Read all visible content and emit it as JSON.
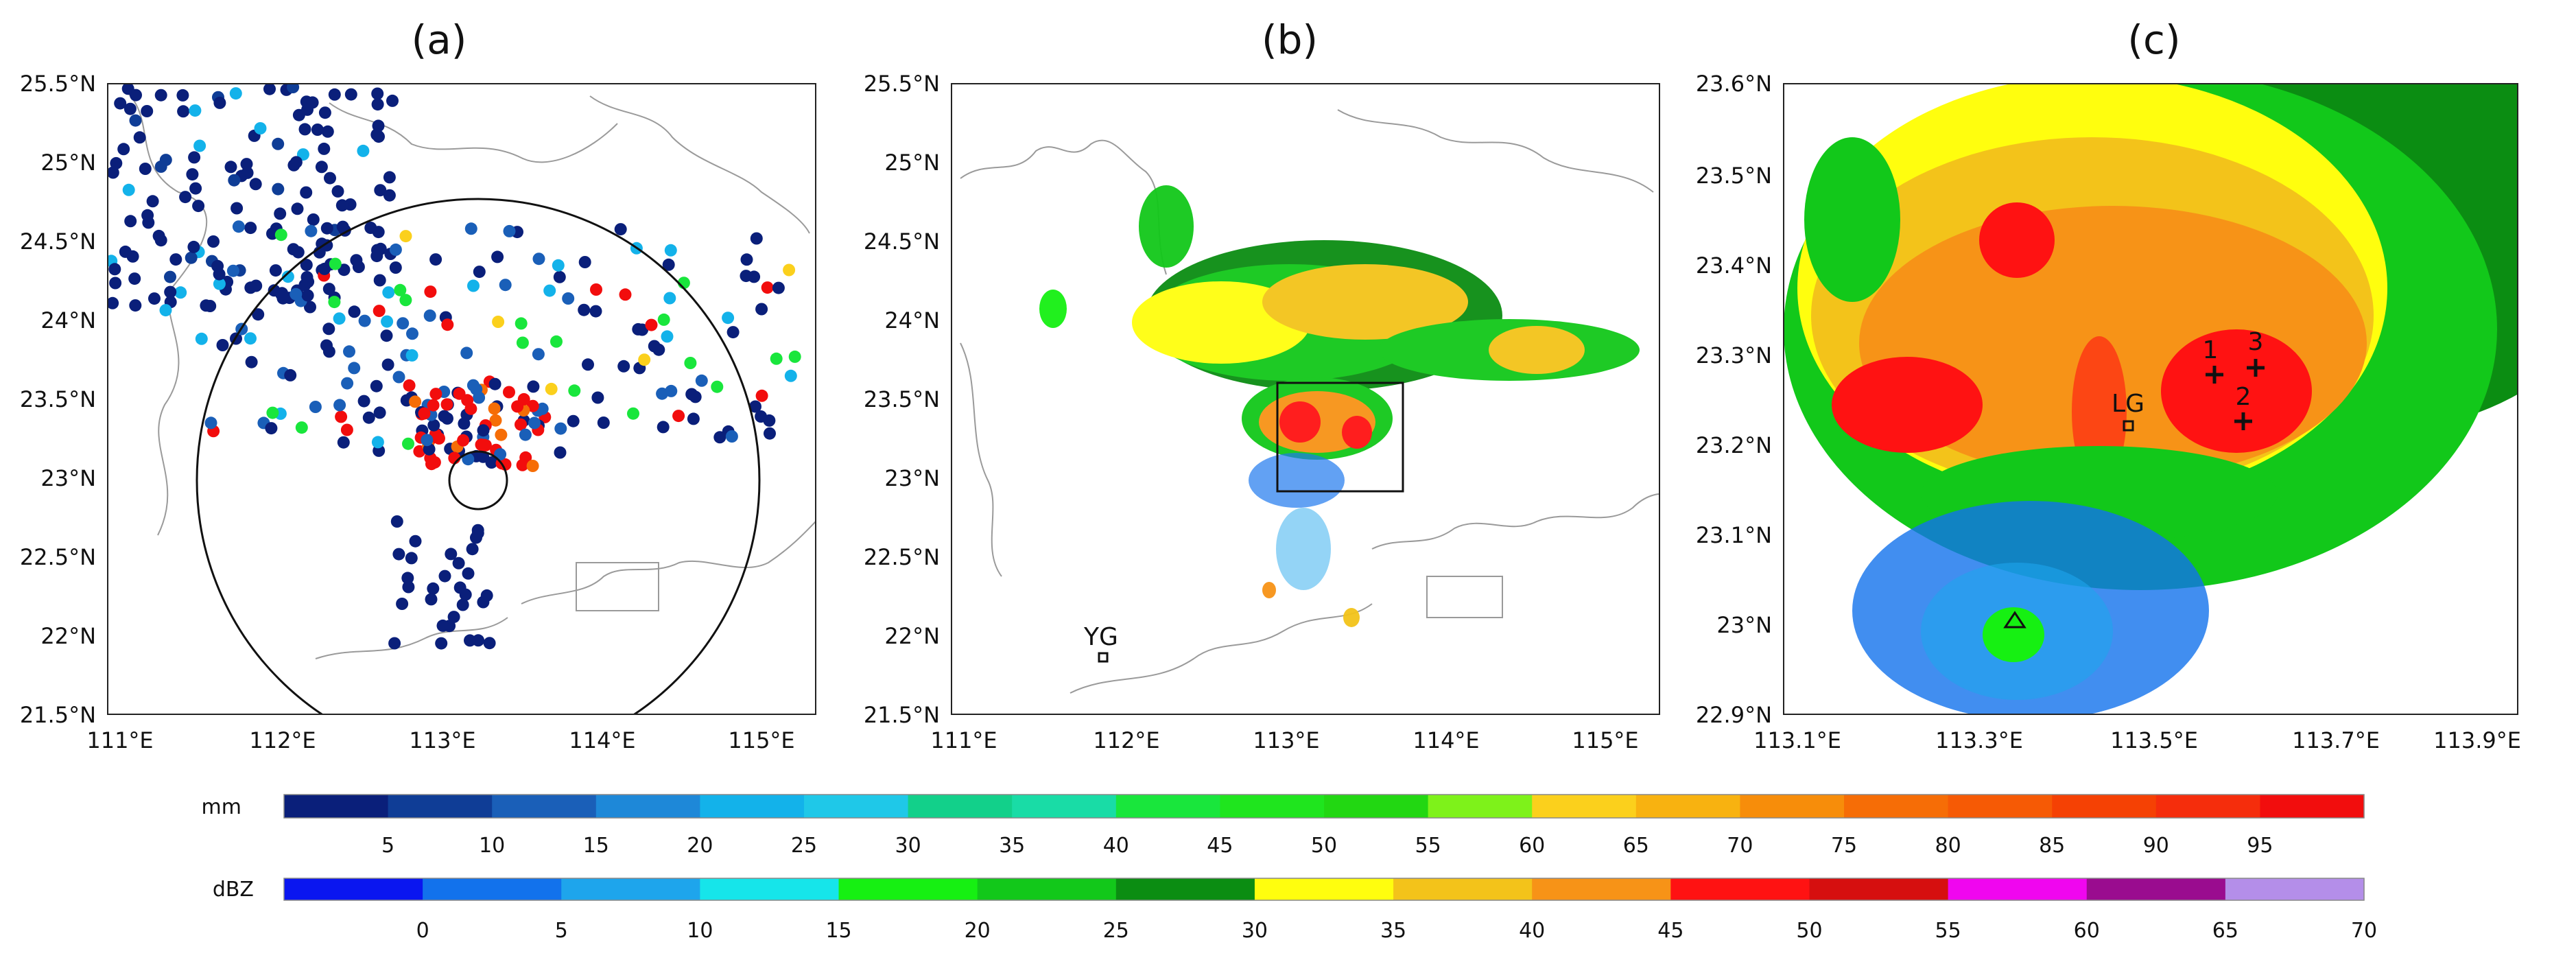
{
  "panels": [
    {
      "label": "(a)",
      "x_ticks": [
        "111°E",
        "112°E",
        "113°E",
        "114°E",
        "115°E"
      ],
      "y_ticks": [
        "21.5°N",
        "22°N",
        "22.5°N",
        "23°N",
        "23.5°N",
        "24°N",
        "24.5°N",
        "25°N",
        "25.5°N"
      ],
      "content": "rain gauge accumulated precipitation (mm)"
    },
    {
      "label": "(b)",
      "x_ticks": [
        "111°E",
        "112°E",
        "113°E",
        "114°E",
        "115°E"
      ],
      "y_ticks": [
        "21.5°N",
        "22°N",
        "22.5°N",
        "23°N",
        "23.5°N",
        "24°N",
        "24.5°N",
        "25°N",
        "25.5°N"
      ],
      "station": "YG",
      "content": "radar reflectivity (dBZ)"
    },
    {
      "label": "(c)",
      "x_ticks": [
        "113.1°E",
        "113.3°E",
        "113.5°E",
        "113.7°E",
        "113.9°E"
      ],
      "y_ticks": [
        "22.9°N",
        "23°N",
        "23.1°N",
        "23.2°N",
        "23.3°N",
        "23.4°N",
        "23.5°N",
        "23.6°N"
      ],
      "station": "LG",
      "markers": [
        "1",
        "2",
        "3"
      ],
      "content": "zoomed radar reflectivity (dBZ)"
    }
  ],
  "colorbars": [
    {
      "unit": "mm",
      "labels": [
        "5",
        "10",
        "15",
        "20",
        "25",
        "30",
        "35",
        "40",
        "45",
        "50",
        "55",
        "60",
        "65",
        "70",
        "75",
        "80",
        "85",
        "90",
        "95"
      ],
      "colors": [
        "#0a1f7a",
        "#0f3d96",
        "#1a5fb8",
        "#1e88d8",
        "#13b2ea",
        "#1fc8e8",
        "#12d08a",
        "#19dca6",
        "#19e63c",
        "#1fe51e",
        "#22d712",
        "#7ef21a",
        "#fbd01c",
        "#f8b210",
        "#f78d0a",
        "#f66d06",
        "#f65a05",
        "#f54104",
        "#f52d0c",
        "#f20d0d"
      ]
    },
    {
      "unit": "dBZ",
      "labels": [
        "0",
        "5",
        "10",
        "15",
        "20",
        "25",
        "30",
        "35",
        "40",
        "45",
        "50",
        "55",
        "60",
        "65",
        "70"
      ],
      "colors": [
        "#0a16f0",
        "#1272ec",
        "#1ea5ec",
        "#16e5ea",
        "#16f012",
        "#12c81a",
        "#0b8d12",
        "#fffe0e",
        "#f3c31a",
        "#f79317",
        "#ff1212",
        "#d60f0f",
        "#f006ef",
        "#9a0c8f",
        "#b48ee9"
      ]
    }
  ]
}
